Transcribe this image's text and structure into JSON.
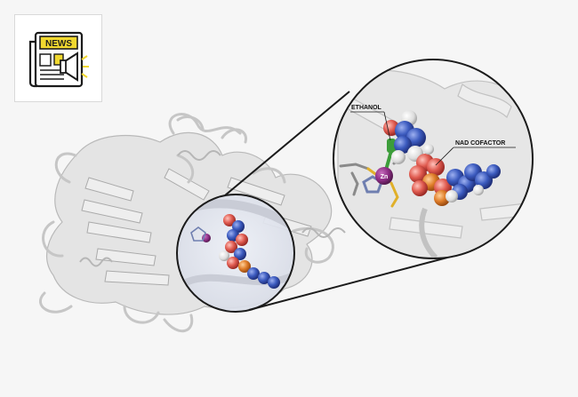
{
  "labels": {
    "ethanol": "ETHANOL",
    "nad": "NAD COFACTOR",
    "zinc": "Zn"
  },
  "badge": {
    "icon": "newspaper-megaphone-icon",
    "text": "NEWS"
  },
  "colors": {
    "background": "#f6f6f6",
    "protein": "#e4e4e4",
    "protein_outline": "#b9b9b9",
    "zinc": "#8e2d86",
    "nitrogen_blue": "#3c5bbf",
    "oxygen_red": "#e05b50",
    "phosphorus_orange": "#e07e2a",
    "carbon_green": "#3c9d3a",
    "badge_yellow": "#f1d82f"
  }
}
